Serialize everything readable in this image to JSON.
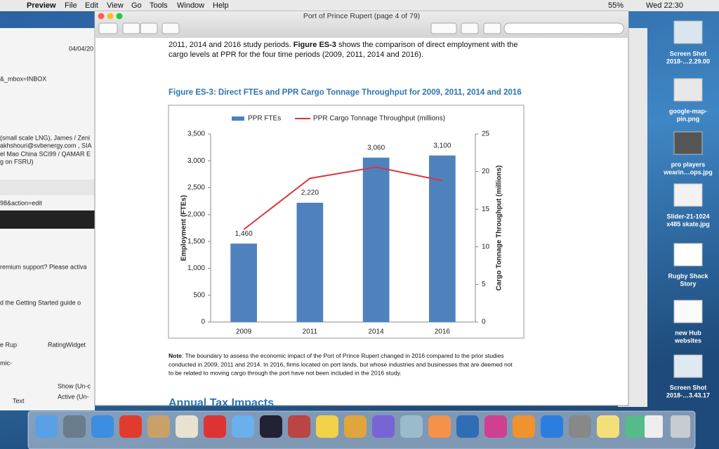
{
  "menubar": {
    "app": "Preview",
    "items": [
      "File",
      "Edit",
      "View",
      "Go",
      "Tools",
      "Window",
      "Help"
    ],
    "battery": "55%",
    "clock": "Wed 22:30"
  },
  "window": {
    "title": "Port of Prince Rupert (page 4 of 79)"
  },
  "background_window": {
    "lines": [
      "04/04/20",
      "&_mbox=INBOX",
      "(small scale LNG), James / Zeni",
      "akhshouri@svbenergy.com , SIA",
      "el Mao China SCi99 / QAMAR E",
      "g on FSRU)",
      "98&action=edit",
      "remium support? Please activa",
      "d the Getting Started guide o",
      "e Rup",
      "RatingWidget",
      "mic-",
      "Show (Un-c",
      "Active (Un-",
      "Text"
    ]
  },
  "document": {
    "intro": [
      "2011, 2014 and 2016 study periods. ",
      "Figure ES-3",
      " shows the comparison of direct employment with the",
      "cargo levels at PPR for the four time periods (2009, 2011, 2014 and 2016)."
    ],
    "note": [
      "Note",
      ": The boundary to assess the economic impact of the Port of Prince Rupert changed in 2016 compared to the prior studies",
      "conducted in 2009, 2011 and 2014. In 2016, firms located on port lands, but whose industries and businesses that are deemed not",
      "to be related to moving cargo through the port have not been included in the 2016 study."
    ],
    "next_heading": "Annual Tax Impacts"
  },
  "chart_data": {
    "type": "bar",
    "title": "Figure ES-3: Direct FTEs and PPR Cargo Tonnage Throughput for 2009, 2011, 2014 and 2016",
    "categories": [
      "2009",
      "2011",
      "2014",
      "2016"
    ],
    "series": [
      {
        "name": "PPR FTEs",
        "type": "bar",
        "color": "#4f81bd",
        "values": [
          1460,
          2220,
          3060,
          3100
        ],
        "value_labels": [
          "1,460",
          "2,220",
          "3,060",
          "3,100"
        ]
      },
      {
        "name": "PPR Cargo Tonnage Throughput (millions)",
        "type": "line",
        "axis": "y2",
        "color": "#d7373f",
        "values": [
          12.3,
          19.1,
          20.6,
          18.8
        ]
      }
    ],
    "ylabel": "Employment (FTEs)",
    "y2label": "Cargo Tonnage Throughput (millions)",
    "ylim": [
      0,
      3500
    ],
    "yticks": [
      0,
      500,
      {
        "value": 1000,
        "label": "1,000"
      },
      {
        "value": 1500,
        "label": "1,500"
      },
      {
        "value": 2000,
        "label": "2,000"
      },
      {
        "value": 2500,
        "label": "2,500"
      },
      {
        "value": 3000,
        "label": "3,000"
      },
      {
        "value": 3500,
        "label": "3,500"
      }
    ],
    "y2lim": [
      0,
      25
    ],
    "y2ticks": [
      0,
      5,
      10,
      15,
      20,
      25
    ],
    "legend": "top"
  },
  "desktop": {
    "icons": [
      {
        "lines": [
          "Screen Shot",
          "2018-…2.29.00"
        ]
      },
      {
        "lines": [
          "google-map-",
          "pin.png"
        ]
      },
      {
        "lines": [
          "pro players",
          "wearin…ops.jpg"
        ]
      },
      {
        "lines": [
          "Slider-21-1024",
          "x485 skate.jpg"
        ]
      },
      {
        "lines": [
          "Rugby Shack",
          "Story"
        ]
      },
      {
        "lines": [
          "new Hub",
          "websites"
        ]
      },
      {
        "lines": [
          "Screen Shot",
          "2018-…3.43.17"
        ]
      }
    ]
  }
}
